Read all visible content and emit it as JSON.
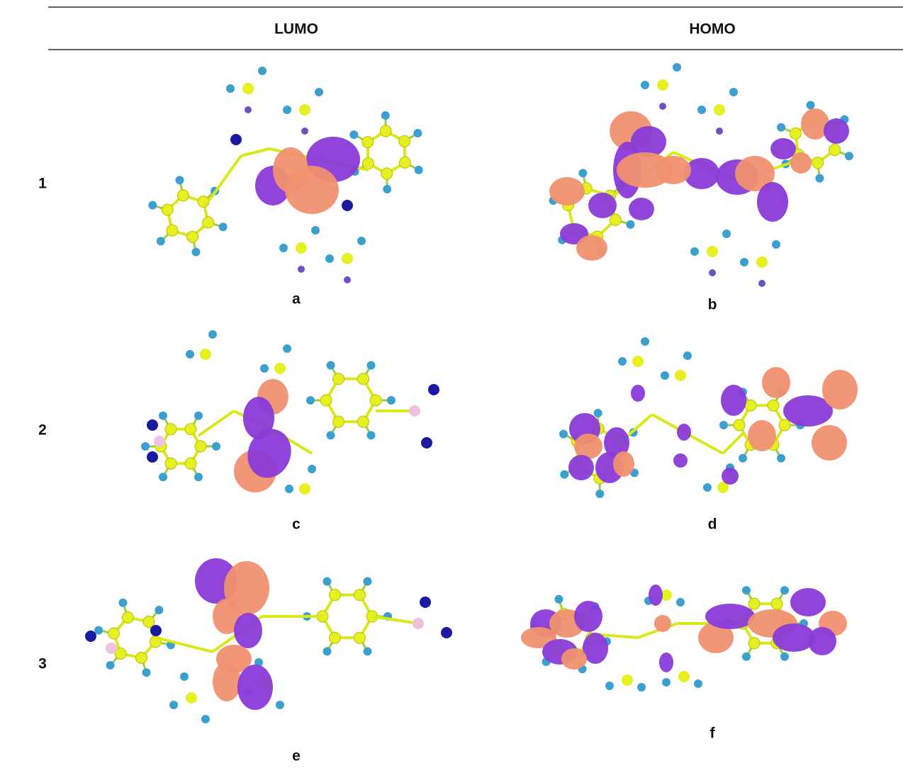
{
  "table": {
    "header": [
      "LUMO",
      "HOMO"
    ],
    "rows": [
      {
        "label": "1",
        "captions": [
          "a",
          "b"
        ]
      },
      {
        "label": "2",
        "captions": [
          "c",
          "d"
        ]
      },
      {
        "label": "3",
        "captions": [
          "e",
          "f"
        ]
      }
    ]
  }
}
